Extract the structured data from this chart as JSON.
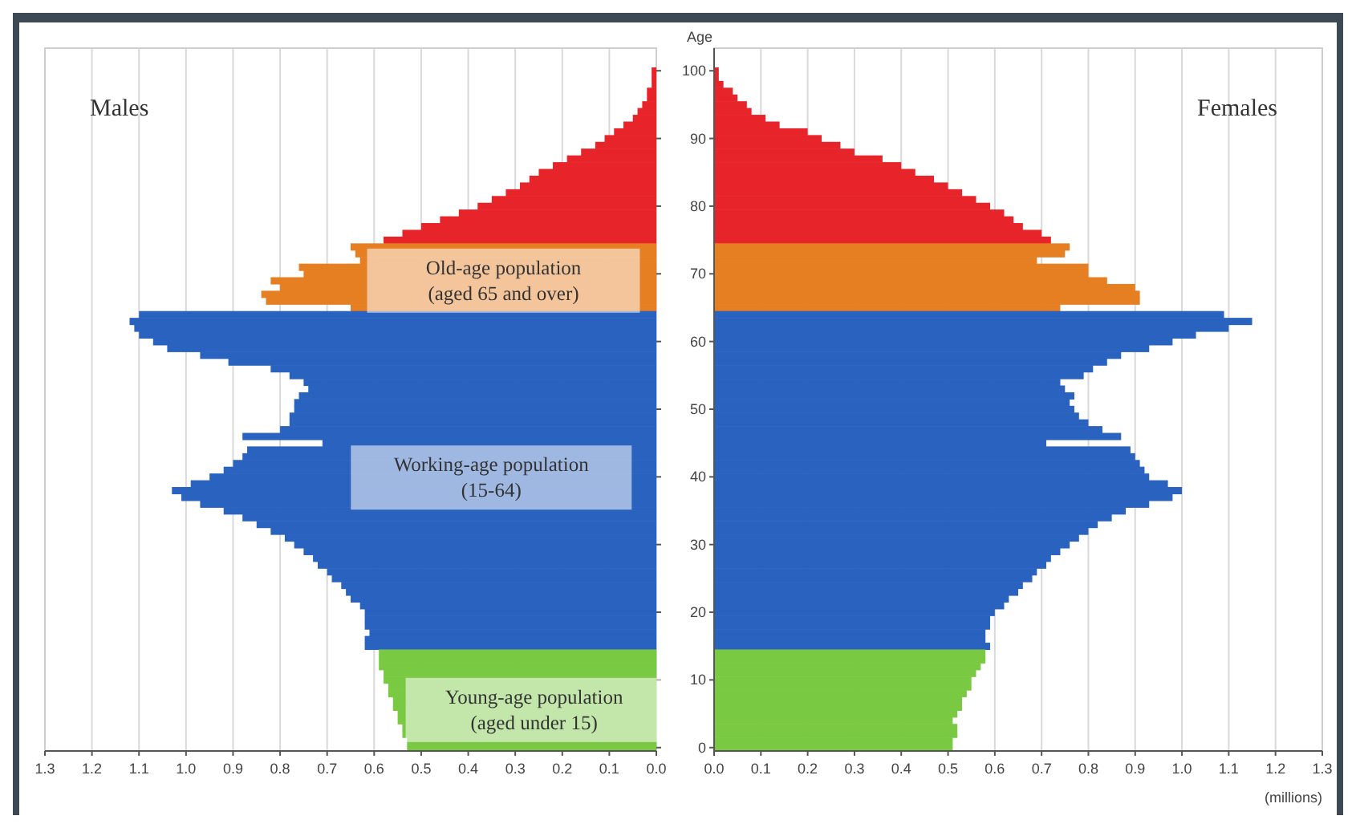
{
  "chart_data": [
    {
      "type": "bar",
      "orientation": "horizontal",
      "title": "Males",
      "grid": "x",
      "tick_labels": "x",
      "categories": [
        "100",
        null,
        null,
        null,
        null,
        null,
        null,
        null,
        null,
        null,
        "90",
        null,
        null,
        null,
        null,
        null,
        null,
        null,
        null,
        null,
        "80",
        null,
        null,
        null,
        null,
        null,
        null,
        null,
        null,
        null,
        "70",
        null,
        null,
        null,
        null,
        null,
        null,
        null,
        null,
        null,
        "60",
        null,
        null,
        null,
        null,
        null,
        null,
        null,
        null,
        null,
        "50",
        null,
        null,
        null,
        null,
        null,
        null,
        null,
        null,
        null,
        "40",
        null,
        null,
        null,
        null,
        null,
        null,
        null,
        null,
        null,
        "30",
        null,
        null,
        null,
        null,
        null,
        null,
        null,
        null,
        null,
        "20",
        null,
        null,
        null,
        null,
        null,
        null,
        null,
        null,
        null,
        "10",
        null,
        null,
        null,
        null,
        null,
        null,
        null,
        null,
        null,
        "0"
      ],
      "values": [
        0.01,
        0.01,
        0.01,
        0.02,
        0.02,
        0.03,
        0.04,
        0.05,
        0.07,
        0.09,
        0.11,
        0.13,
        0.16,
        0.19,
        0.22,
        0.25,
        0.27,
        0.29,
        0.32,
        0.35,
        0.38,
        0.42,
        0.46,
        0.5,
        0.54,
        0.58,
        0.65,
        0.64,
        0.63,
        0.76,
        0.75,
        0.82,
        0.8,
        0.84,
        0.83,
        0.65,
        1.1,
        1.12,
        1.11,
        1.1,
        1.07,
        1.04,
        0.97,
        0.91,
        0.82,
        0.78,
        0.75,
        0.74,
        0.76,
        0.77,
        0.77,
        0.78,
        0.78,
        0.8,
        0.88,
        0.71,
        0.87,
        0.88,
        0.9,
        0.92,
        0.95,
        0.99,
        1.03,
        1.01,
        0.97,
        0.92,
        0.88,
        0.85,
        0.82,
        0.79,
        0.77,
        0.75,
        0.73,
        0.72,
        0.7,
        0.69,
        0.67,
        0.66,
        0.65,
        0.63,
        0.62,
        0.62,
        0.62,
        0.61,
        0.62,
        0.62,
        0.59,
        0.59,
        0.59,
        0.58,
        0.58,
        0.57,
        0.57,
        0.56,
        0.56,
        0.55,
        0.55,
        0.54,
        0.54,
        0.53,
        0.53
      ],
      "colors": [
        "#e8242b",
        "#e8242b",
        "#e8242b",
        "#e8242b",
        "#e8242b",
        "#e8242b",
        "#e8242b",
        "#e8242b",
        "#e8242b",
        "#e8242b",
        "#e8242b",
        "#e8242b",
        "#e8242b",
        "#e8242b",
        "#e8242b",
        "#e8242b",
        "#e8242b",
        "#e8242b",
        "#e8242b",
        "#e8242b",
        "#e8242b",
        "#e8242b",
        "#e8242b",
        "#e8242b",
        "#e8242b",
        "#e8242b",
        "#e67e22",
        "#e67e22",
        "#e67e22",
        "#e67e22",
        "#e67e22",
        "#e67e22",
        "#e67e22",
        "#e67e22",
        "#e67e22",
        "#e67e22",
        "#2a62bf",
        "#2a62bf",
        "#2a62bf",
        "#2a62bf",
        "#2a62bf",
        "#2a62bf",
        "#2a62bf",
        "#2a62bf",
        "#2a62bf",
        "#2a62bf",
        "#2a62bf",
        "#2a62bf",
        "#2a62bf",
        "#2a62bf",
        "#2a62bf",
        "#2a62bf",
        "#2a62bf",
        "#2a62bf",
        "#2a62bf",
        "#2a62bf",
        "#2a62bf",
        "#2a62bf",
        "#2a62bf",
        "#2a62bf",
        "#2a62bf",
        "#2a62bf",
        "#2a62bf",
        "#2a62bf",
        "#2a62bf",
        "#2a62bf",
        "#2a62bf",
        "#2a62bf",
        "#2a62bf",
        "#2a62bf",
        "#2a62bf",
        "#2a62bf",
        "#2a62bf",
        "#2a62bf",
        "#2a62bf",
        "#2a62bf",
        "#2a62bf",
        "#2a62bf",
        "#2a62bf",
        "#2a62bf",
        "#2a62bf",
        "#2a62bf",
        "#2a62bf",
        "#2a62bf",
        "#2a62bf",
        "#2a62bf",
        "#7ac943",
        "#7ac943",
        "#7ac943",
        "#7ac943",
        "#7ac943",
        "#7ac943",
        "#7ac943",
        "#7ac943",
        "#7ac943",
        "#7ac943",
        "#7ac943",
        "#7ac943",
        "#7ac943",
        "#7ac943",
        "#7ac943"
      ],
      "xlim": [
        1.3,
        0
      ],
      "xticks": [
        {
          "value": 1.3,
          "label": "1.3"
        },
        {
          "value": 1.2,
          "label": "1.2"
        },
        {
          "value": 1.1,
          "label": "1.1"
        },
        {
          "value": 1,
          "label": "1.0"
        },
        {
          "value": 0.9,
          "label": "0.9"
        },
        {
          "value": 0.8,
          "label": "0.8"
        },
        {
          "value": 0.7,
          "label": "0.7"
        },
        {
          "value": 0.6,
          "label": "0.6"
        },
        {
          "value": 0.5,
          "label": "0.5"
        },
        {
          "value": 0.4,
          "label": "0.4"
        },
        {
          "value": 0.3,
          "label": "0.3"
        },
        {
          "value": 0.2,
          "label": "0.2"
        },
        {
          "value": 0.1,
          "label": "0.1"
        },
        {
          "value": 0,
          "label": "0.0"
        }
      ],
      "annotations": [
        "Old-age population\n(aged 65 and over)",
        "Working-age population\n(15-64)",
        "Young-age population\n(aged under 15)"
      ]
    },
    {
      "type": "bar",
      "orientation": "horizontal",
      "title": "Females",
      "ylabel": "Age",
      "xlabel": "(millions)",
      "grid": "x",
      "categories": [
        "100",
        null,
        null,
        null,
        null,
        null,
        null,
        null,
        null,
        null,
        "90",
        null,
        null,
        null,
        null,
        null,
        null,
        null,
        null,
        null,
        "80",
        null,
        null,
        null,
        null,
        null,
        null,
        null,
        null,
        null,
        "70",
        null,
        null,
        null,
        null,
        null,
        null,
        null,
        null,
        null,
        "60",
        null,
        null,
        null,
        null,
        null,
        null,
        null,
        null,
        null,
        "50",
        null,
        null,
        null,
        null,
        null,
        null,
        null,
        null,
        null,
        "40",
        null,
        null,
        null,
        null,
        null,
        null,
        null,
        null,
        null,
        "30",
        null,
        null,
        null,
        null,
        null,
        null,
        null,
        null,
        null,
        "20",
        null,
        null,
        null,
        null,
        null,
        null,
        null,
        null,
        null,
        "10",
        null,
        null,
        null,
        null,
        null,
        null,
        null,
        null,
        null,
        "0"
      ],
      "values": [
        0.01,
        0.01,
        0.02,
        0.04,
        0.05,
        0.07,
        0.08,
        0.11,
        0.14,
        0.2,
        0.23,
        0.27,
        0.3,
        0.36,
        0.4,
        0.43,
        0.47,
        0.5,
        0.53,
        0.56,
        0.59,
        0.62,
        0.64,
        0.66,
        0.7,
        0.72,
        0.76,
        0.75,
        0.69,
        0.8,
        0.8,
        0.84,
        0.9,
        0.91,
        0.91,
        0.74,
        1.09,
        1.15,
        1.1,
        1.03,
        0.98,
        0.93,
        0.87,
        0.84,
        0.81,
        0.79,
        0.74,
        0.75,
        0.77,
        0.76,
        0.77,
        0.78,
        0.8,
        0.83,
        0.87,
        0.71,
        0.89,
        0.9,
        0.91,
        0.92,
        0.93,
        0.97,
        1.0,
        0.98,
        0.93,
        0.88,
        0.85,
        0.82,
        0.8,
        0.78,
        0.76,
        0.74,
        0.72,
        0.71,
        0.69,
        0.68,
        0.66,
        0.65,
        0.63,
        0.62,
        0.6,
        0.59,
        0.59,
        0.58,
        0.58,
        0.59,
        0.58,
        0.58,
        0.57,
        0.56,
        0.55,
        0.55,
        0.54,
        0.53,
        0.53,
        0.52,
        0.51,
        0.52,
        0.52,
        0.51,
        0.51
      ],
      "colors": [
        "#e8242b",
        "#e8242b",
        "#e8242b",
        "#e8242b",
        "#e8242b",
        "#e8242b",
        "#e8242b",
        "#e8242b",
        "#e8242b",
        "#e8242b",
        "#e8242b",
        "#e8242b",
        "#e8242b",
        "#e8242b",
        "#e8242b",
        "#e8242b",
        "#e8242b",
        "#e8242b",
        "#e8242b",
        "#e8242b",
        "#e8242b",
        "#e8242b",
        "#e8242b",
        "#e8242b",
        "#e8242b",
        "#e8242b",
        "#e67e22",
        "#e67e22",
        "#e67e22",
        "#e67e22",
        "#e67e22",
        "#e67e22",
        "#e67e22",
        "#e67e22",
        "#e67e22",
        "#e67e22",
        "#2a62bf",
        "#2a62bf",
        "#2a62bf",
        "#2a62bf",
        "#2a62bf",
        "#2a62bf",
        "#2a62bf",
        "#2a62bf",
        "#2a62bf",
        "#2a62bf",
        "#2a62bf",
        "#2a62bf",
        "#2a62bf",
        "#2a62bf",
        "#2a62bf",
        "#2a62bf",
        "#2a62bf",
        "#2a62bf",
        "#2a62bf",
        "#2a62bf",
        "#2a62bf",
        "#2a62bf",
        "#2a62bf",
        "#2a62bf",
        "#2a62bf",
        "#2a62bf",
        "#2a62bf",
        "#2a62bf",
        "#2a62bf",
        "#2a62bf",
        "#2a62bf",
        "#2a62bf",
        "#2a62bf",
        "#2a62bf",
        "#2a62bf",
        "#2a62bf",
        "#2a62bf",
        "#2a62bf",
        "#2a62bf",
        "#2a62bf",
        "#2a62bf",
        "#2a62bf",
        "#2a62bf",
        "#2a62bf",
        "#2a62bf",
        "#2a62bf",
        "#2a62bf",
        "#2a62bf",
        "#2a62bf",
        "#2a62bf",
        "#7ac943",
        "#7ac943",
        "#7ac943",
        "#7ac943",
        "#7ac943",
        "#7ac943",
        "#7ac943",
        "#7ac943",
        "#7ac943",
        "#7ac943",
        "#7ac943",
        "#7ac943",
        "#7ac943",
        "#7ac943",
        "#7ac943"
      ],
      "xlim": [
        0,
        1.3
      ],
      "xticks": [
        {
          "value": 0,
          "label": "0.0"
        },
        {
          "value": 0.1,
          "label": "0.1"
        },
        {
          "value": 0.2,
          "label": "0.2"
        },
        {
          "value": 0.3,
          "label": "0.3"
        },
        {
          "value": 0.4,
          "label": "0.4"
        },
        {
          "value": 0.5,
          "label": "0.5"
        },
        {
          "value": 0.6,
          "label": "0.6"
        },
        {
          "value": 0.7,
          "label": "0.7"
        },
        {
          "value": 0.8,
          "label": "0.8"
        },
        {
          "value": 0.9,
          "label": "0.9"
        },
        {
          "value": 1,
          "label": "1.0"
        },
        {
          "value": 1.1,
          "label": "1.1"
        },
        {
          "value": 1.2,
          "label": "1.2"
        },
        {
          "value": 1.3,
          "label": "1.3"
        }
      ]
    }
  ]
}
